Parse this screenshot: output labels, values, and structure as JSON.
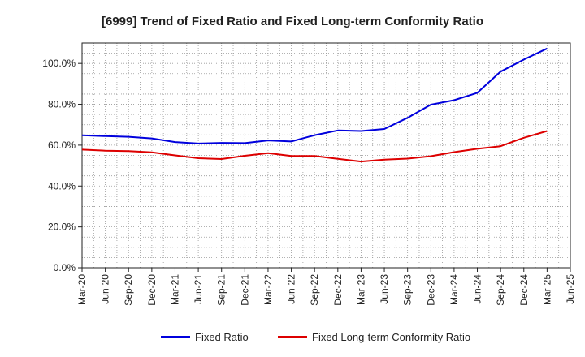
{
  "chart_data": {
    "type": "line",
    "title": "[6999]  Trend of Fixed Ratio and Fixed Long-term Conformity Ratio",
    "xlabel": "",
    "ylabel": "",
    "categories": [
      "Mar-20",
      "Jun-20",
      "Sep-20",
      "Dec-20",
      "Mar-21",
      "Jun-21",
      "Sep-21",
      "Dec-21",
      "Mar-22",
      "Jun-22",
      "Sep-22",
      "Dec-22",
      "Mar-23",
      "Jun-23",
      "Sep-23",
      "Dec-23",
      "Mar-24",
      "Jun-24",
      "Sep-24",
      "Dec-24",
      "Mar-25",
      "Jun-25"
    ],
    "ylim": [
      0,
      110
    ],
    "yticks": [
      0,
      20,
      40,
      60,
      80,
      100
    ],
    "ytick_labels": [
      "0.0%",
      "20.0%",
      "40.0%",
      "60.0%",
      "80.0%",
      "100.0%"
    ],
    "grid": true,
    "legend_position": "bottom",
    "series": [
      {
        "name": "Fixed Ratio",
        "color": "#0000dd",
        "values": [
          64.8,
          64.4,
          64.1,
          63.3,
          61.5,
          60.8,
          61.1,
          61.0,
          62.3,
          61.8,
          64.9,
          67.2,
          66.9,
          67.9,
          73.4,
          79.8,
          82.0,
          85.6,
          96.0,
          101.9,
          107.3,
          null
        ]
      },
      {
        "name": "Fixed Long-term Conformity Ratio",
        "color": "#dd0000",
        "values": [
          57.8,
          57.3,
          57.1,
          56.5,
          55.0,
          53.6,
          53.2,
          54.8,
          56.1,
          54.7,
          54.7,
          53.3,
          52.0,
          52.9,
          53.4,
          54.6,
          56.6,
          58.2,
          59.5,
          63.6,
          66.9,
          null
        ]
      }
    ]
  }
}
